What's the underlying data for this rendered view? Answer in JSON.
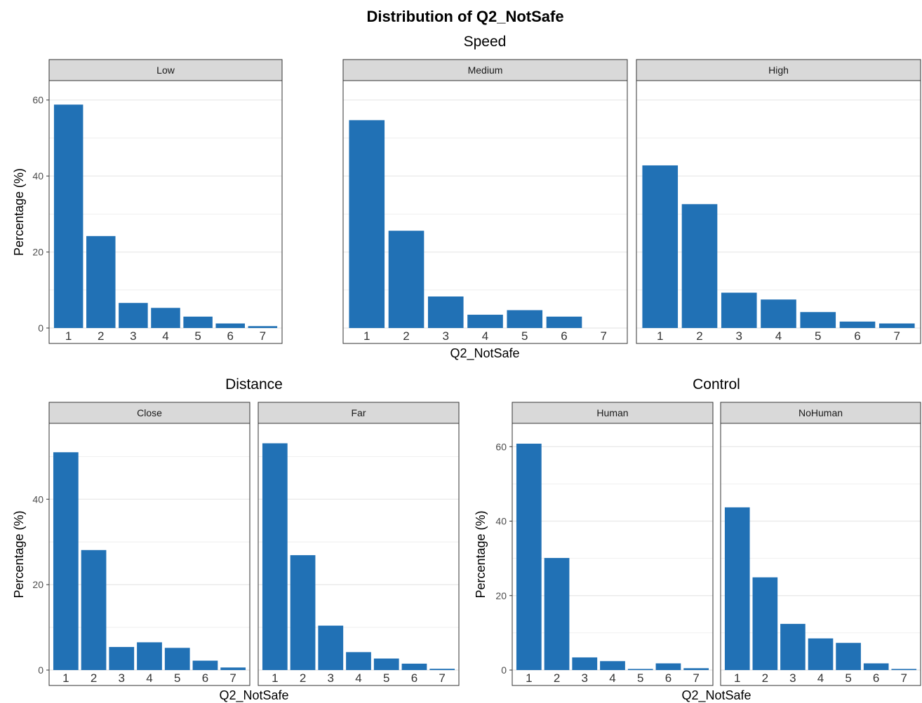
{
  "title": "Distribution of Q2_NotSafe",
  "bar_color": "#2171b5",
  "strip_color": "#d9d9d9",
  "chart_data": [
    {
      "type": "bar",
      "group": "Speed",
      "xlabel": "Q2_NotSafe",
      "ylabel": "Percentage (%)",
      "ylim": [
        0,
        62.9
      ],
      "yticks": [
        0,
        20,
        40,
        60
      ],
      "grid": true,
      "categories": [
        "1",
        "2",
        "3",
        "4",
        "5",
        "6",
        "7"
      ],
      "panels": [
        {
          "label": "Low",
          "values": [
            58.8,
            24.2,
            6.6,
            5.3,
            3.0,
            1.2,
            0.5
          ]
        },
        {
          "label": "Medium",
          "values": [
            54.7,
            25.6,
            8.3,
            3.5,
            4.7,
            3.0,
            0.0
          ]
        },
        {
          "label": "High",
          "values": [
            42.8,
            32.6,
            9.3,
            7.5,
            4.2,
            1.7,
            1.2
          ]
        }
      ]
    },
    {
      "type": "bar",
      "group": "Distance",
      "xlabel": "Q2_NotSafe",
      "ylabel": "Percentage (%)",
      "ylim": [
        0,
        55.8
      ],
      "yticks": [
        0,
        20,
        40
      ],
      "grid": true,
      "categories": [
        "1",
        "2",
        "3",
        "4",
        "5",
        "6",
        "7"
      ],
      "panels": [
        {
          "label": "Close",
          "values": [
            51.0,
            28.1,
            5.4,
            6.5,
            5.2,
            2.2,
            0.6
          ]
        },
        {
          "label": "Far",
          "values": [
            53.1,
            26.9,
            10.4,
            4.2,
            2.7,
            1.5,
            0.3
          ]
        }
      ]
    },
    {
      "type": "bar",
      "group": "Control",
      "xlabel": "Q2_NotSafe",
      "ylabel": "Percentage (%)",
      "ylim": [
        0,
        64.0
      ],
      "yticks": [
        0,
        20,
        40,
        60
      ],
      "grid": true,
      "categories": [
        "1",
        "2",
        "3",
        "4",
        "5",
        "6",
        "7"
      ],
      "panels": [
        {
          "label": "Human",
          "values": [
            60.8,
            30.1,
            3.4,
            2.4,
            0.3,
            1.8,
            0.5
          ]
        },
        {
          "label": "NoHuman",
          "values": [
            43.7,
            24.9,
            12.4,
            8.5,
            7.3,
            1.8,
            0.3
          ]
        }
      ]
    }
  ]
}
